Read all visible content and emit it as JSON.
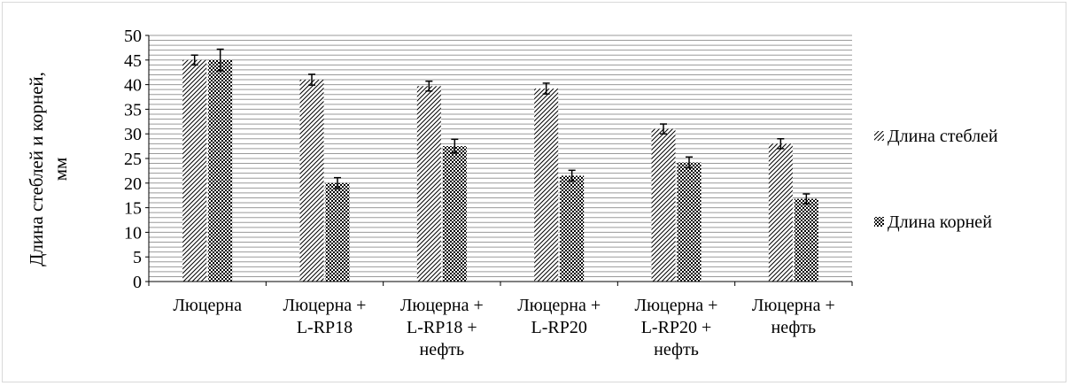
{
  "chart_data": {
    "type": "bar",
    "title": "",
    "xlabel": "",
    "ylabel": "Длина стеблей и корней, мм",
    "ylim": [
      0,
      50
    ],
    "ytick_step": 5,
    "grid": true,
    "legend_position": "right",
    "categories": [
      [
        "Люцерна"
      ],
      [
        "Люцерна +",
        "L-RP18"
      ],
      [
        "Люцерна +",
        "L-RP18 +",
        "нефть"
      ],
      [
        "Люцерна +",
        "L-RP20"
      ],
      [
        "Люцерна +",
        "L-RP20 +",
        "нефть"
      ],
      [
        "Люцерна +",
        "нефть"
      ]
    ],
    "series": [
      {
        "name": "Длина стеблей",
        "pattern": "diagonal-hatch",
        "values": [
          45,
          41,
          39.7,
          39.2,
          31,
          28
        ],
        "errors": [
          1.0,
          1.1,
          1.0,
          1.1,
          1.0,
          1.0
        ]
      },
      {
        "name": "Длина корней",
        "pattern": "checkered",
        "values": [
          45,
          20,
          27.5,
          21.5,
          24.2,
          16.8
        ],
        "errors": [
          2.2,
          1.1,
          1.4,
          1.1,
          1.1,
          1.0
        ]
      }
    ]
  }
}
